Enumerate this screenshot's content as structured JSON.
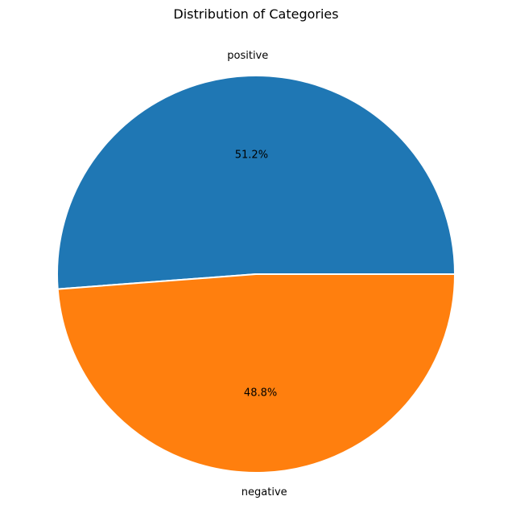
{
  "chart_data": {
    "type": "pie",
    "title": "Distribution of Categories",
    "categories": [
      "positive",
      "negative"
    ],
    "values": [
      51.2,
      48.8
    ],
    "percent_labels": [
      "51.2%",
      "48.8%"
    ],
    "colors": [
      "#1f77b4",
      "#ff7f0e"
    ],
    "edge_color": "#ffffff",
    "start_angle_deg": 0,
    "direction": "counterclockwise",
    "legend": "none"
  }
}
